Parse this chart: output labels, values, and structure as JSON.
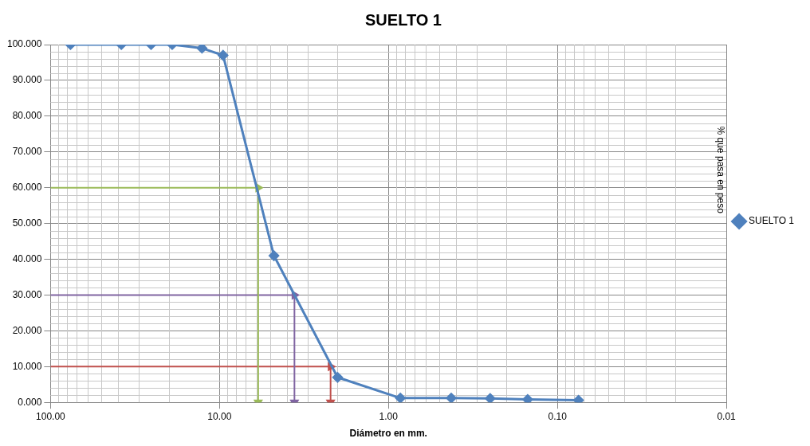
{
  "chart_data": {
    "type": "line",
    "title": "SUELTO 1",
    "xlabel": "Diámetro en mm.",
    "ylabel": "% que pasa en peso",
    "log": "x",
    "grid": true,
    "legend": "right",
    "marker": "diamond",
    "xlim": [
      100,
      0.01
    ],
    "xticks": [
      {
        "value": 100,
        "label": "100.00"
      },
      {
        "value": 10,
        "label": "10.00"
      },
      {
        "value": 1,
        "label": "1.00"
      },
      {
        "value": 0.1,
        "label": "0.10"
      },
      {
        "value": 0.01,
        "label": "0.01"
      }
    ],
    "ylim": [
      0,
      100
    ],
    "yticks": [
      {
        "value": 0,
        "label": "0.000"
      },
      {
        "value": 10,
        "label": "10.000"
      },
      {
        "value": 20,
        "label": "20.000"
      },
      {
        "value": 30,
        "label": "30.000"
      },
      {
        "value": 40,
        "label": "40.000"
      },
      {
        "value": 50,
        "label": "50.000"
      },
      {
        "value": 60,
        "label": "60.000"
      },
      {
        "value": 70,
        "label": "70.000"
      },
      {
        "value": 80,
        "label": "80.000"
      },
      {
        "value": 90,
        "label": "90.000"
      },
      {
        "value": 100,
        "label": "100.000"
      }
    ],
    "series": [
      {
        "name": "SUELTO 1",
        "color": "#4f81bd",
        "x": [
          76.2,
          38.1,
          25.4,
          19.05,
          12.7,
          9.525,
          4.76,
          2.0,
          0.85,
          0.425,
          0.25,
          0.15,
          0.075
        ],
        "values": [
          100,
          100,
          100,
          100,
          99,
          97,
          41,
          7,
          1.2,
          1.2,
          1.1,
          0.8,
          0.6
        ]
      },
      {
        "color": "#9bbb59",
        "marker": "triangle",
        "x": [
          100,
          5.9,
          5.9
        ],
        "values": [
          60,
          60,
          0
        ]
      },
      {
        "color": "#8064a2",
        "marker": "triangle",
        "x": [
          100,
          3.6,
          3.6
        ],
        "values": [
          30,
          30,
          0
        ]
      },
      {
        "color": "#c0504d",
        "marker": "triangle",
        "x": [
          100,
          2.2,
          2.2
        ],
        "values": [
          10,
          10,
          0
        ]
      }
    ]
  }
}
